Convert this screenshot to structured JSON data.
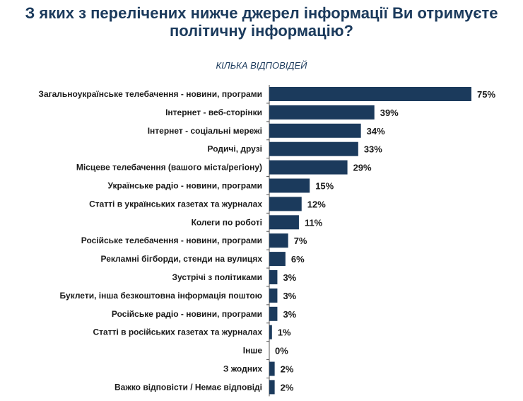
{
  "colors": {
    "title": "#1b3a5c",
    "subtitle": "#1b3a5c",
    "bar": "#1b3a5c",
    "text": "#1a1a1a",
    "axis": "#555555"
  },
  "chart_data": {
    "type": "bar",
    "orientation": "horizontal",
    "title": "З яких з перелічених нижче джерел інформації Ви отримуєте політичну інформацію?",
    "subtitle": "КІЛЬКА ВІДПОВІДЕЙ",
    "xlabel": "",
    "ylabel": "",
    "xlim": [
      0,
      75
    ],
    "grid": false,
    "categories": [
      "Загальноукраїнське телебачення - новини, програми",
      "Інтернет - веб-сторінки",
      "Інтернет - соціальні мережі",
      "Родичі, друзі",
      "Місцеве телебачення (вашого міста/регіону)",
      "Українське радіо  - новини, програми",
      "Статті в українських газетах та журналах",
      "Колеги по роботі",
      "Російське телебачення - новини, програми",
      "Рекламні бігборди, стенди на вулицях",
      "Зустрічі з політиками",
      "Буклети, інша безкоштовна інформація поштою",
      "Російське радіо  - новини, програми",
      "Статті в російських газетах та журналах",
      "Інше",
      "З жодних",
      "Важко відповісти / Немає відповіді"
    ],
    "values": [
      75,
      39,
      34,
      33,
      29,
      15,
      12,
      11,
      7,
      6,
      3,
      3,
      3,
      1,
      0,
      2,
      2
    ],
    "value_labels": [
      "75%",
      "39%",
      "34%",
      "33%",
      "29%",
      "15%",
      "12%",
      "11%",
      "7%",
      "6%",
      "3%",
      "3%",
      "3%",
      "1%",
      "0%",
      "2%",
      "2%"
    ]
  }
}
